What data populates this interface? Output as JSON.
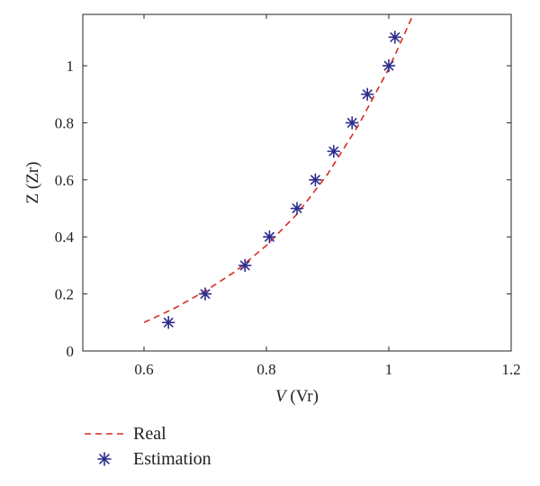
{
  "chart_data": {
    "type": "line",
    "xlabel_var": "V",
    "xlabel_unit": " (Vr)",
    "ylabel": "Z (Zr)",
    "xlim": [
      0.5,
      1.2
    ],
    "ylim": [
      0,
      1.18
    ],
    "xticks": [
      0.6,
      0.8,
      1,
      1.2
    ],
    "xtick_labels": [
      "0.6",
      "0.8",
      "1",
      "1.2"
    ],
    "yticks": [
      0,
      0.2,
      0.4,
      0.6,
      0.8,
      1
    ],
    "ytick_labels": [
      "0",
      "0.2",
      "0.4",
      "0.6",
      "0.8",
      "1"
    ],
    "grid": false,
    "legend_position": "bottom-left",
    "series": [
      {
        "name": "Real",
        "style": "dashed-line",
        "color": "#d62a1e",
        "x": [
          0.6,
          0.65,
          0.7,
          0.75,
          0.8,
          0.85,
          0.9,
          0.95,
          1.0,
          1.04
        ],
        "y": [
          0.1,
          0.15,
          0.21,
          0.28,
          0.37,
          0.48,
          0.62,
          0.79,
          0.99,
          1.18
        ]
      },
      {
        "name": "Estimation",
        "style": "asterisk-markers",
        "color": "#2c2c8c",
        "x": [
          0.64,
          0.7,
          0.765,
          0.805,
          0.85,
          0.88,
          0.91,
          0.94,
          0.965,
          1.0,
          1.01
        ],
        "y": [
          0.1,
          0.2,
          0.3,
          0.4,
          0.5,
          0.6,
          0.7,
          0.8,
          0.9,
          1.0,
          1.1
        ]
      }
    ]
  }
}
